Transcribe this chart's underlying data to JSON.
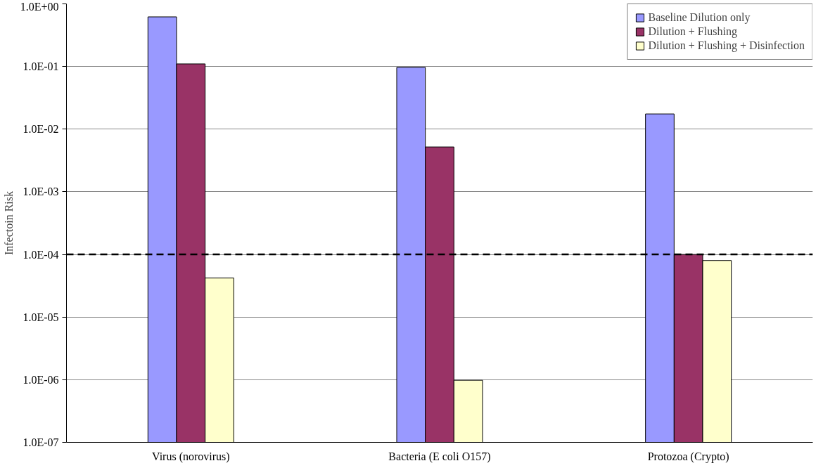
{
  "chart_data": {
    "type": "bar",
    "ylabel": "Infectoin Risk",
    "categories": [
      "Virus (norovirus)",
      "Bacteria (E coli O157)",
      "Protozoa (Crypto)"
    ],
    "series": [
      {
        "name": "Baseline Dilution only",
        "color": "#9999ff",
        "values": [
          0.62,
          0.097,
          0.0175
        ]
      },
      {
        "name": "Dilution + Flushing",
        "color": "#993366",
        "values": [
          0.11,
          0.0052,
          0.0001
        ]
      },
      {
        "name": "Dilution + Flushing + Disinfection",
        "color": "#ffffcc",
        "values": [
          4.2e-05,
          9.8e-07,
          8e-05
        ]
      }
    ],
    "log": true,
    "ylim": [
      1e-07,
      1
    ],
    "yticks": [
      {
        "value": 1e-07,
        "label": "1.0E-07"
      },
      {
        "value": 1e-06,
        "label": "1.0E-06"
      },
      {
        "value": 1e-05,
        "label": "1.0E-05"
      },
      {
        "value": 0.0001,
        "label": "1.0E-04"
      },
      {
        "value": 0.001,
        "label": "1.0E-03"
      },
      {
        "value": 0.01,
        "label": "1.0E-02"
      },
      {
        "value": 0.1,
        "label": "1.0E-01"
      },
      {
        "value": 1,
        "label": "1.0E+00"
      }
    ],
    "ref_lines": [
      {
        "axis": "y",
        "value": 0.0001,
        "color": "#000000",
        "line_style": "dashed"
      }
    ],
    "grid": "y",
    "legend": "top right"
  }
}
